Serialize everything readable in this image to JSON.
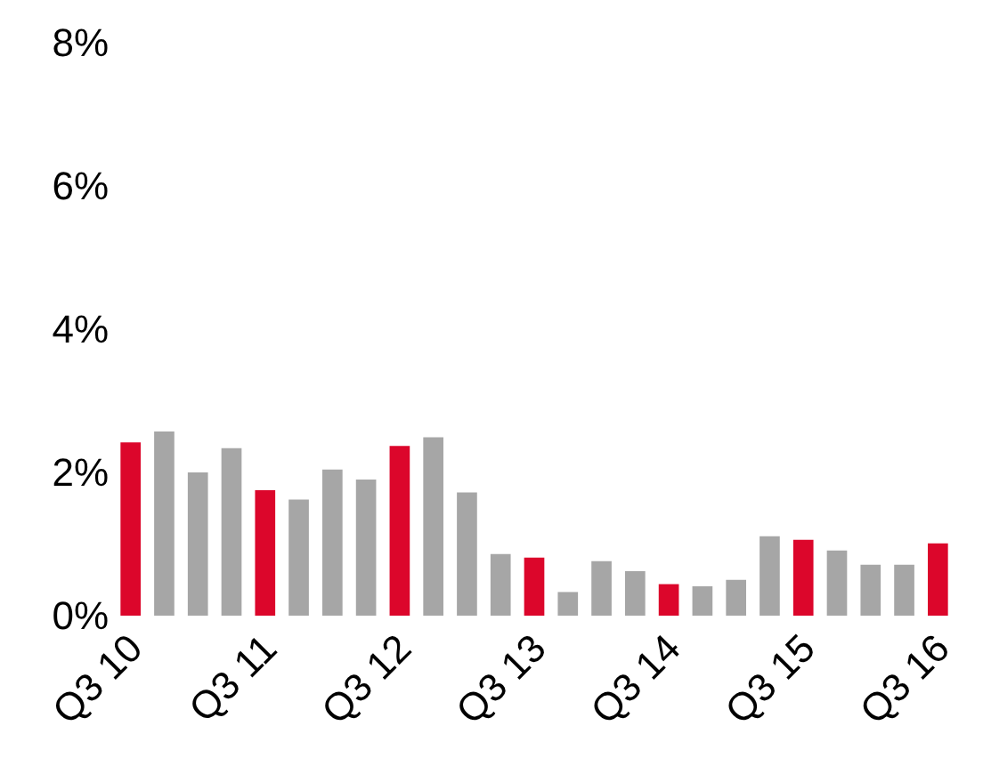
{
  "chart_data": {
    "type": "bar",
    "categories": [
      "Q3 10",
      null,
      null,
      null,
      "Q3 11",
      null,
      null,
      null,
      "Q3 12",
      null,
      null,
      null,
      "Q3 13",
      null,
      null,
      null,
      "Q3 14",
      null,
      null,
      null,
      "Q3 15",
      null,
      null,
      null,
      "Q3 16"
    ],
    "values": [
      2.42,
      2.57,
      2.0,
      2.34,
      1.75,
      1.62,
      2.04,
      1.9,
      2.37,
      2.49,
      1.72,
      0.86,
      0.81,
      0.33,
      0.76,
      0.62,
      0.44,
      0.41,
      0.5,
      1.11,
      1.06,
      0.91,
      0.71,
      0.71,
      1.01
    ],
    "colors": [
      "#dc062b",
      "#a6a6a6",
      "#a6a6a6",
      "#a6a6a6",
      "#dc062b",
      "#a6a6a6",
      "#a6a6a6",
      "#a6a6a6",
      "#dc062b",
      "#a6a6a6",
      "#a6a6a6",
      "#a6a6a6",
      "#dc062b",
      "#a6a6a6",
      "#a6a6a6",
      "#a6a6a6",
      "#dc062b",
      "#a6a6a6",
      "#a6a6a6",
      "#a6a6a6",
      "#dc062b",
      "#a6a6a6",
      "#a6a6a6",
      "#a6a6a6",
      "#dc062b"
    ],
    "ylim": [
      0,
      8
    ],
    "yticks": [
      {
        "value": 0,
        "label": "0%"
      },
      {
        "value": 2,
        "label": "2%"
      },
      {
        "value": 4,
        "label": "4%"
      },
      {
        "value": 6,
        "label": "6%"
      },
      {
        "value": 8,
        "label": "8%"
      }
    ],
    "grid": false
  }
}
